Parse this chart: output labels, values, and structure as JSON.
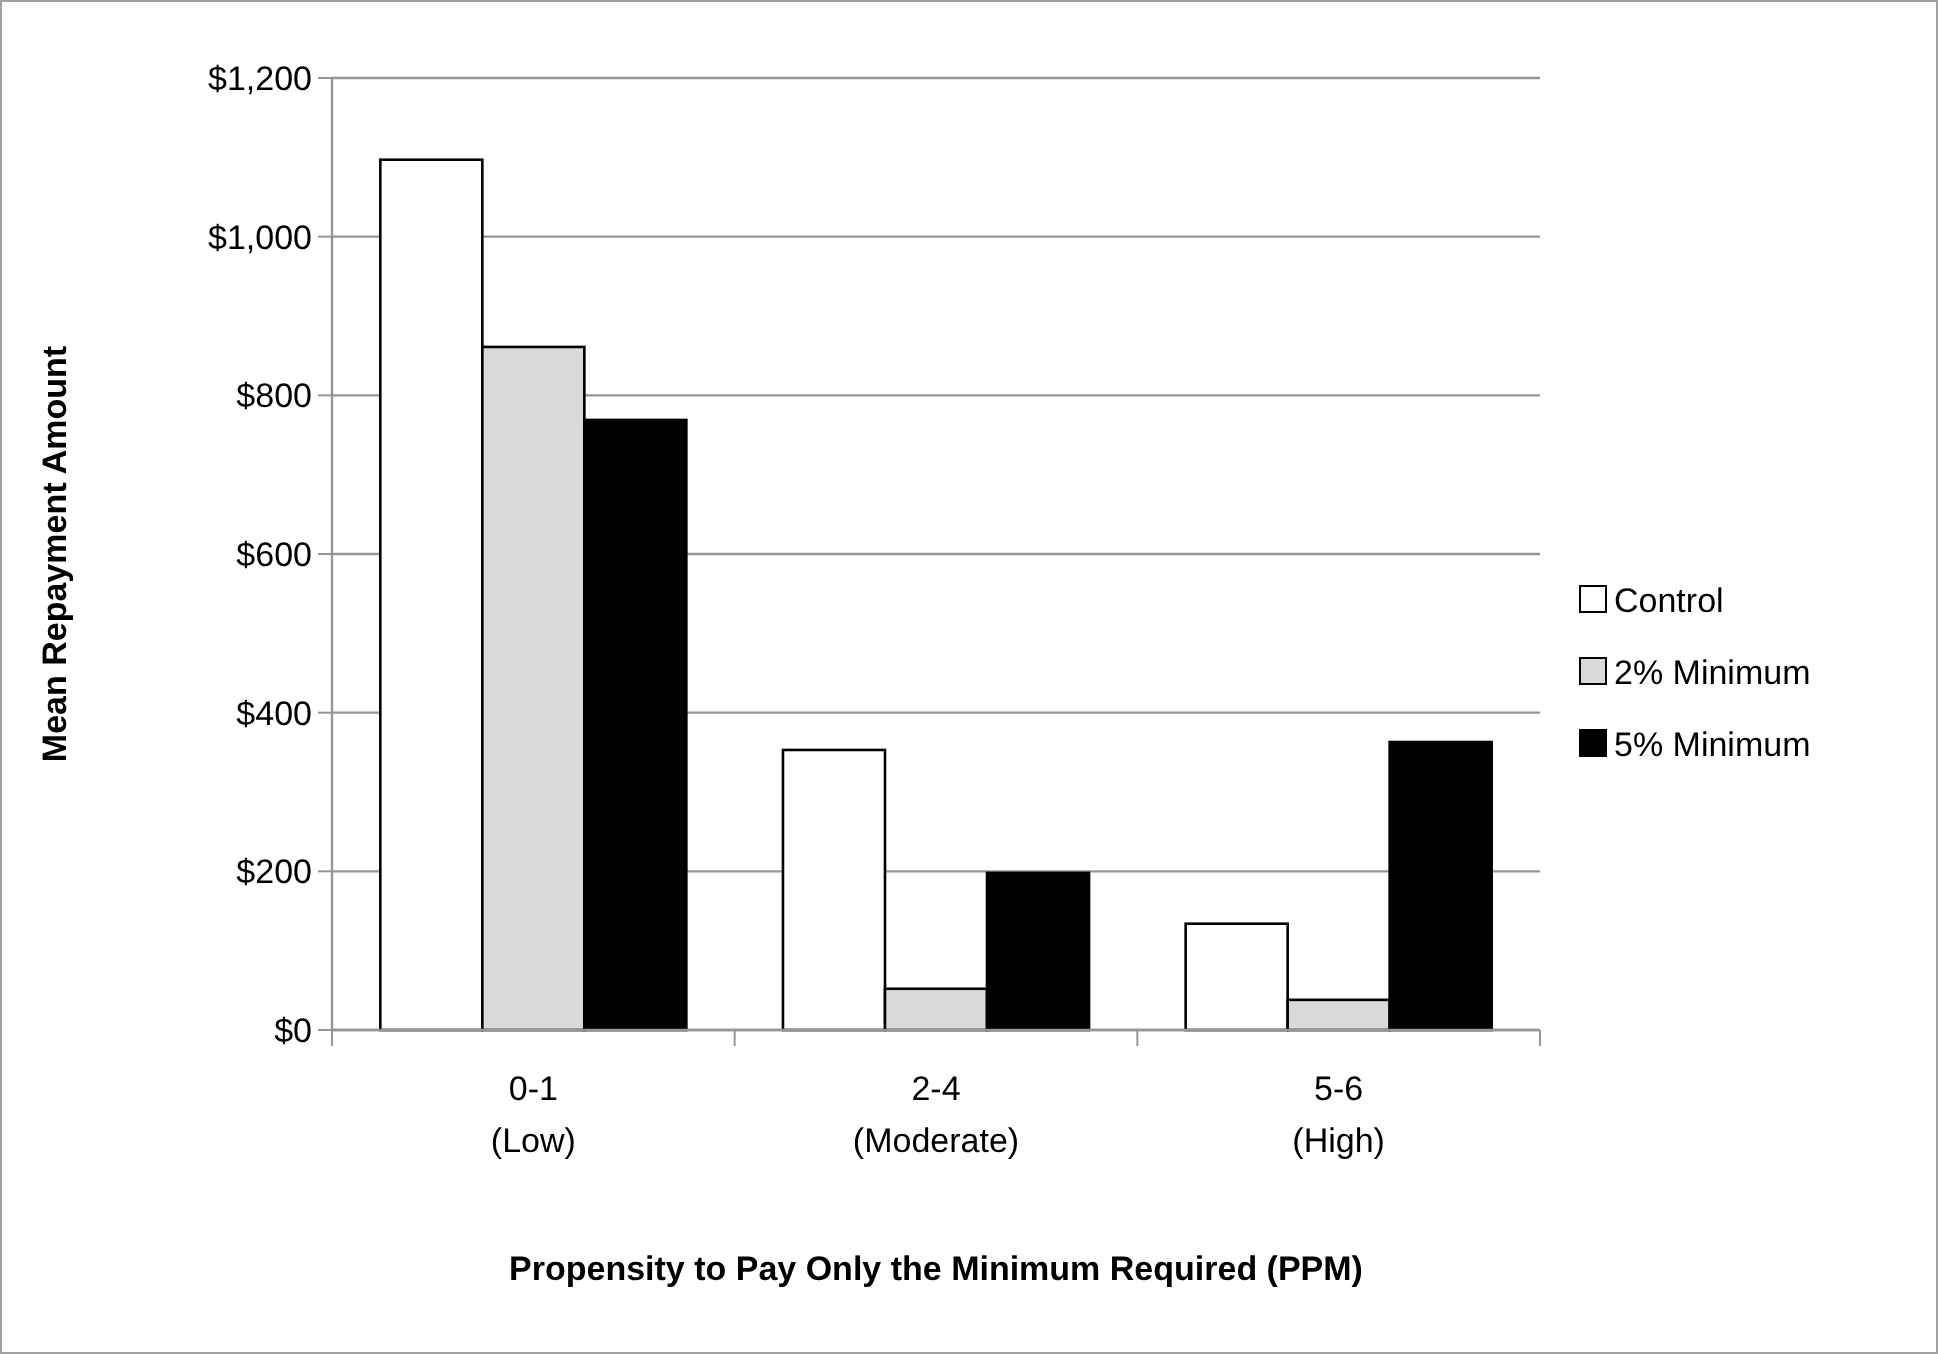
{
  "chart_data": {
    "type": "bar",
    "xlabel": "Propensity to Pay Only the Minimum Required (PPM)",
    "ylabel": "Mean Repayment Amount",
    "categories": [
      "0-1\n(Low)",
      "2-4\n(Moderate)",
      "5-6\n(High)"
    ],
    "series": [
      {
        "name": "Control",
        "color": "#ffffff",
        "values": [
          1097,
          353,
          134
        ]
      },
      {
        "name": "2% Minimum",
        "color": "#d9d9d9",
        "values": [
          861,
          52,
          38
        ]
      },
      {
        "name": "5% Minimum",
        "color": "#000000",
        "values": [
          769,
          198,
          363
        ]
      }
    ],
    "ylim": [
      0,
      1200
    ],
    "yticks": [
      {
        "value": 0,
        "label": "$0"
      },
      {
        "value": 200,
        "label": "$200"
      },
      {
        "value": 400,
        "label": "$400"
      },
      {
        "value": 600,
        "label": "$600"
      },
      {
        "value": 800,
        "label": "$800"
      },
      {
        "value": 1000,
        "label": "$1,000"
      },
      {
        "value": 1200,
        "label": "$1,200"
      }
    ],
    "grid": "y",
    "legend": "right"
  }
}
